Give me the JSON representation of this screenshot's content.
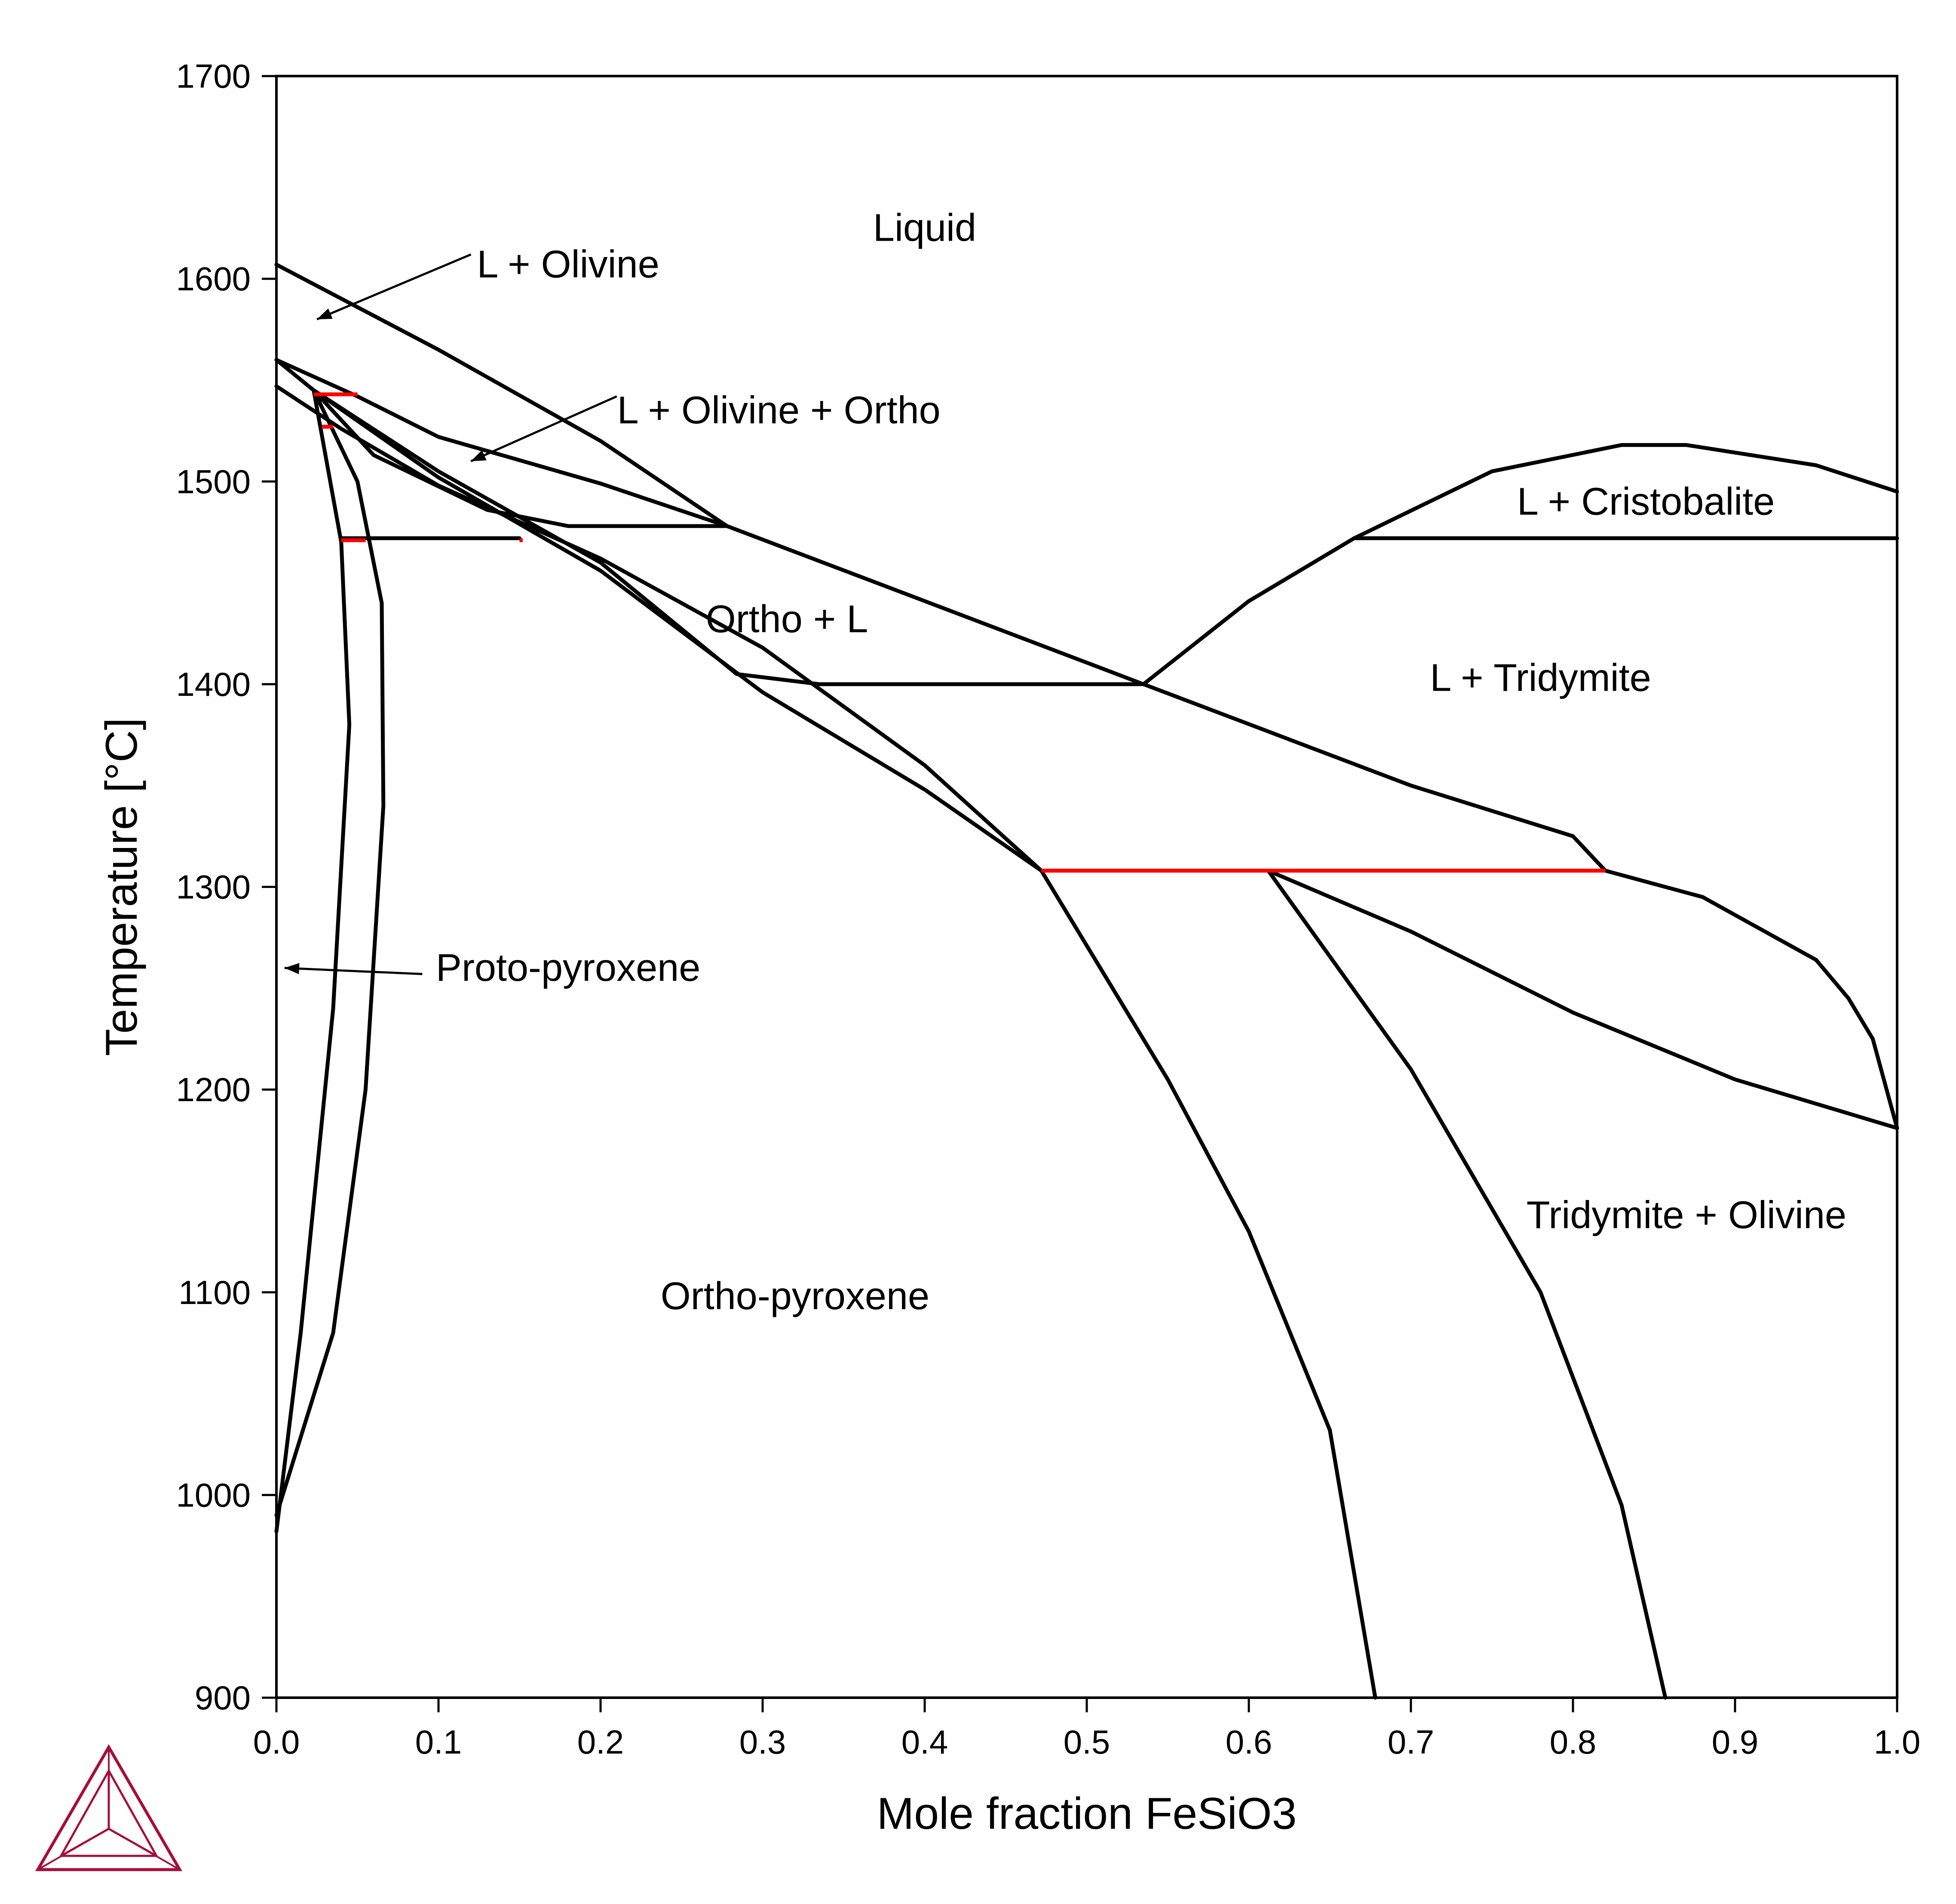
{
  "chart_data": {
    "type": "line",
    "title": "",
    "xlabel": "Mole fraction FeSiO3",
    "ylabel": "Temperature [°C]",
    "xlim": [
      0.0,
      1.0
    ],
    "ylim": [
      900,
      1700
    ],
    "grid": false,
    "legend": "none",
    "x_ticks": [
      0.0,
      0.1,
      0.2,
      0.3,
      0.4,
      0.5,
      0.6,
      0.7,
      0.8,
      0.9,
      1.0
    ],
    "x_tick_labels": [
      "0.0",
      "0.1",
      "0.2",
      "0.3",
      "0.4",
      "0.5",
      "0.6",
      "0.7",
      "0.8",
      "0.9",
      "1.0"
    ],
    "y_ticks": [
      900,
      1000,
      1100,
      1200,
      1300,
      1400,
      1500,
      1600,
      1700
    ],
    "y_tick_labels": [
      "900",
      "1000",
      "1100",
      "1200",
      "1300",
      "1400",
      "1500",
      "1600",
      "1700"
    ],
    "colors": {
      "phase_boundary": "#000000",
      "invariant_line": "#ff0000",
      "logo": "#a50f3a"
    },
    "series": [
      {
        "points": [
          [
            0.0,
            1607
          ],
          [
            0.1,
            1565
          ],
          [
            0.2,
            1520
          ],
          [
            0.278,
            1478
          ]
        ]
      },
      {
        "points": [
          [
            0.0,
            1560
          ],
          [
            0.05,
            1542
          ],
          [
            0.1,
            1522
          ],
          [
            0.2,
            1499
          ],
          [
            0.278,
            1478
          ]
        ]
      },
      {
        "points": [
          [
            0.0,
            1547
          ],
          [
            0.04,
            1526
          ],
          [
            0.1,
            1498
          ],
          [
            0.2,
            1462
          ],
          [
            0.3,
            1418
          ],
          [
            0.4,
            1360
          ],
          [
            0.472,
            1308
          ]
        ]
      },
      {
        "points": [
          [
            0.0,
            1560
          ],
          [
            0.023,
            1545
          ],
          [
            0.06,
            1513
          ],
          [
            0.13,
            1486
          ],
          [
            0.18,
            1478
          ],
          [
            0.278,
            1478
          ]
        ]
      },
      {
        "points": [
          [
            0.023,
            1545
          ],
          [
            0.1,
            1505
          ],
          [
            0.2,
            1460
          ],
          [
            0.284,
            1405
          ],
          [
            0.335,
            1400
          ],
          [
            0.535,
            1400
          ]
        ]
      },
      {
        "points": [
          [
            0.023,
            1545
          ],
          [
            0.1,
            1502
          ],
          [
            0.2,
            1456
          ],
          [
            0.3,
            1396
          ],
          [
            0.4,
            1348
          ],
          [
            0.472,
            1308
          ]
        ]
      },
      {
        "points": [
          [
            0.278,
            1478
          ],
          [
            0.4,
            1441
          ],
          [
            0.535,
            1400
          ],
          [
            0.7,
            1350
          ],
          [
            0.8,
            1325
          ],
          [
            0.82,
            1308
          ],
          [
            0.88,
            1295
          ],
          [
            0.95,
            1264
          ],
          [
            0.97,
            1245
          ],
          [
            0.985,
            1225
          ],
          [
            1.0,
            1181
          ]
        ]
      },
      {
        "points": [
          [
            0.535,
            1400
          ],
          [
            0.6,
            1441
          ],
          [
            0.665,
            1472
          ],
          [
            0.75,
            1505
          ],
          [
            0.83,
            1518
          ],
          [
            0.87,
            1518
          ],
          [
            0.95,
            1508
          ],
          [
            1.0,
            1495
          ]
        ]
      },
      {
        "points": [
          [
            0.665,
            1472
          ],
          [
            1.0,
            1472
          ]
        ]
      },
      {
        "points": [
          [
            0.04,
            1472
          ],
          [
            0.15,
            1472
          ]
        ]
      },
      {
        "points": [
          [
            0.472,
            1308
          ],
          [
            0.55,
            1205
          ],
          [
            0.6,
            1130
          ],
          [
            0.65,
            1032
          ],
          [
            0.678,
            900
          ]
        ]
      },
      {
        "points": [
          [
            0.612,
            1308
          ],
          [
            0.7,
            1210
          ],
          [
            0.78,
            1100
          ],
          [
            0.83,
            995
          ],
          [
            0.857,
            900
          ]
        ]
      },
      {
        "points": [
          [
            0.612,
            1308
          ],
          [
            0.7,
            1278
          ],
          [
            0.8,
            1238
          ],
          [
            0.9,
            1205
          ],
          [
            1.0,
            1181
          ]
        ]
      },
      {
        "points": [
          [
            0.023,
            1545
          ],
          [
            0.04,
            1470
          ],
          [
            0.045,
            1380
          ],
          [
            0.035,
            1240
          ],
          [
            0.015,
            1080
          ],
          [
            0.0,
            982
          ]
        ]
      },
      {
        "points": [
          [
            0.023,
            1545
          ],
          [
            0.05,
            1500
          ],
          [
            0.065,
            1440
          ],
          [
            0.066,
            1340
          ],
          [
            0.055,
            1200
          ],
          [
            0.035,
            1080
          ],
          [
            0.0,
            990
          ]
        ]
      }
    ],
    "invariant_lines": [
      {
        "points": [
          [
            0.023,
            1543
          ],
          [
            0.05,
            1543
          ]
        ]
      },
      {
        "points": [
          [
            0.028,
            1527
          ],
          [
            0.035,
            1527
          ]
        ]
      },
      {
        "points": [
          [
            0.04,
            1471
          ],
          [
            0.055,
            1471
          ]
        ]
      },
      {
        "points": [
          [
            0.15,
            1471
          ],
          [
            0.152,
            1471
          ]
        ]
      },
      {
        "points": [
          [
            0.472,
            1308
          ],
          [
            0.82,
            1308
          ]
        ]
      }
    ],
    "region_labels": [
      {
        "text": "Liquid",
        "x": 0.4,
        "y": 1625
      },
      {
        "text": "L + Olivine",
        "x": 0.18,
        "y": 1607
      },
      {
        "text": "L + Olivine + Ortho",
        "x": 0.31,
        "y": 1535
      },
      {
        "text": "Ortho + L",
        "x": 0.315,
        "y": 1432
      },
      {
        "text": "L + Cristobalite",
        "x": 0.845,
        "y": 1490
      },
      {
        "text": "L + Tridymite",
        "x": 0.78,
        "y": 1403
      },
      {
        "text": "Proto-pyroxene",
        "x": 0.18,
        "y": 1260
      },
      {
        "text": "Ortho-pyroxene",
        "x": 0.32,
        "y": 1098
      },
      {
        "text": "Tridymite + Olivine",
        "x": 0.87,
        "y": 1138
      }
    ],
    "annotation_arrows": [
      {
        "from": [
          0.12,
          1612
        ],
        "to": [
          0.025,
          1580
        ]
      },
      {
        "from": [
          0.21,
          1542
        ],
        "to": [
          0.12,
          1510
        ]
      },
      {
        "from": [
          0.09,
          1257
        ],
        "to": [
          0.005,
          1260
        ]
      }
    ]
  }
}
